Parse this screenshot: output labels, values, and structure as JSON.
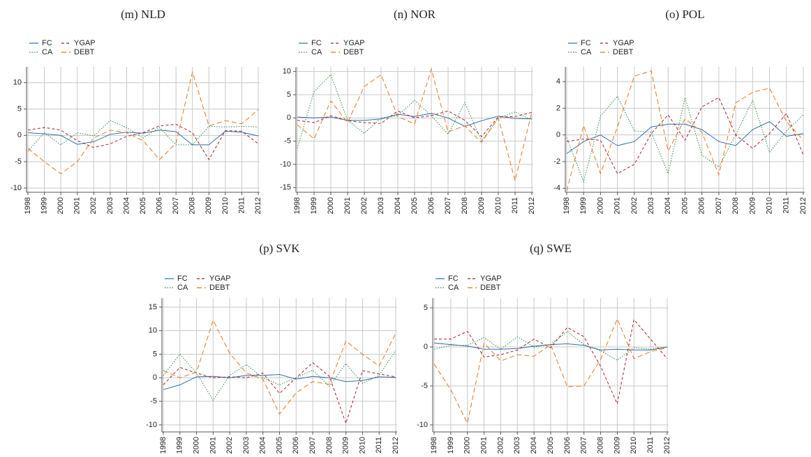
{
  "chart_data": [
    {
      "type": "line",
      "title": "(m) NLD",
      "categories": [
        "1998",
        "1999",
        "2000",
        "2001",
        "2002",
        "2003",
        "2004",
        "2005",
        "2006",
        "2007",
        "2008",
        "2009",
        "2010",
        "2011",
        "2012"
      ],
      "ylim": [
        -10.8,
        13
      ],
      "yticks": [
        -10,
        -5,
        0,
        5,
        10
      ],
      "grid": true,
      "series": [
        {
          "name": "FC",
          "color": "#2f6eaa",
          "dash": "solid",
          "values": [
            0.5,
            0.3,
            0,
            -1.7,
            -1.2,
            0.2,
            0.6,
            0.4,
            1.0,
            0.7,
            -1.8,
            -1.8,
            0.8,
            0.6,
            -0.1
          ]
        },
        {
          "name": "YGAP",
          "color": "#a8212b",
          "dash": "dashed",
          "values": [
            1.0,
            1.5,
            1.0,
            -1.0,
            -2.3,
            -1.6,
            -0.2,
            0.5,
            1.8,
            2.1,
            0.5,
            -4.6,
            0.9,
            0.8,
            -1.6
          ]
        },
        {
          "name": "CA",
          "color": "#2b8a3e",
          "dash": "dotted",
          "values": [
            -3,
            0.5,
            -1.8,
            0.5,
            -0.1,
            2.8,
            1.5,
            -0.5,
            1.5,
            -1.8,
            -1.8,
            1.7,
            1.6,
            1.7,
            1.6
          ]
        },
        {
          "name": "DEBT",
          "color": "#e8781e",
          "dash": "longdash",
          "values": [
            -2.5,
            -5,
            -7.3,
            -5,
            -0.5,
            1.0,
            0.5,
            -1.0,
            -4.6,
            -1.5,
            12,
            1.8,
            2.8,
            2.2,
            4.9
          ]
        }
      ]
    },
    {
      "type": "line",
      "title": "(n) NOR",
      "categories": [
        "1998",
        "1999",
        "2000",
        "2001",
        "2002",
        "2003",
        "2004",
        "2005",
        "2006",
        "2007",
        "2008",
        "2009",
        "2010",
        "2011",
        "2012"
      ],
      "ylim": [
        -16,
        11
      ],
      "yticks": [
        -15,
        -10,
        -5,
        0,
        5,
        10
      ],
      "grid": true,
      "series": [
        {
          "name": "FC",
          "color": "#2f6eaa",
          "dash": "solid",
          "values": [
            0.2,
            0,
            0.2,
            -0.5,
            -0.5,
            -0.2,
            0.8,
            0.3,
            1.0,
            0.0,
            -1.8,
            -0.6,
            0.4,
            -0.1,
            -0.2
          ]
        },
        {
          "name": "YGAP",
          "color": "#a8212b",
          "dash": "dashed",
          "values": [
            -0.5,
            -1,
            0.5,
            -0.6,
            -1,
            -1.2,
            1.5,
            0,
            0.5,
            1.5,
            -0.5,
            -4,
            0.2,
            0.3,
            1.2
          ]
        },
        {
          "name": "CA",
          "color": "#2b8a3e",
          "dash": "dotted",
          "values": [
            -6.5,
            5.7,
            9.3,
            -0.5,
            -3.3,
            0,
            0.5,
            3.8,
            0.5,
            -3.5,
            3.3,
            -5,
            0,
            1.3,
            -0.4
          ]
        },
        {
          "name": "DEBT",
          "color": "#e8781e",
          "dash": "longdash",
          "values": [
            -1.5,
            -4.5,
            3.7,
            -1,
            6.8,
            9.3,
            0.3,
            -1.3,
            10.5,
            -3,
            -1.7,
            -5.3,
            0,
            -13.5,
            1.3
          ]
        }
      ]
    },
    {
      "type": "line",
      "title": "(o) POL",
      "categories": [
        "1998",
        "1999",
        "2000",
        "2001",
        "2002",
        "2003",
        "2004",
        "2005",
        "2006",
        "2007",
        "2008",
        "2009",
        "2010",
        "2011",
        "2012"
      ],
      "ylim": [
        -4.3,
        5.1
      ],
      "yticks": [
        -4,
        -2,
        0,
        2,
        4
      ],
      "grid": true,
      "series": [
        {
          "name": "FC",
          "color": "#2f6eaa",
          "dash": "solid",
          "values": [
            -1.4,
            -0.5,
            0,
            -0.8,
            -0.5,
            0.6,
            0.8,
            0.8,
            0.4,
            -0.5,
            -0.8,
            0.4,
            1.0,
            -0.1,
            0.1
          ]
        },
        {
          "name": "YGAP",
          "color": "#a8212b",
          "dash": "dashed",
          "values": [
            -0.5,
            -0.3,
            -0.4,
            -2.9,
            -2.2,
            0.1,
            1.5,
            -0.4,
            2.1,
            2.8,
            0,
            -1.0,
            0.1,
            1.6,
            -1.5
          ]
        },
        {
          "name": "CA",
          "color": "#2b8a3e",
          "dash": "dotted",
          "values": [
            -0.2,
            -3.5,
            1.4,
            2.9,
            0.3,
            0.2,
            -2.9,
            2.8,
            -1.5,
            -2.4,
            0,
            2.6,
            -1.3,
            0.3,
            1.5
          ]
        },
        {
          "name": "DEBT",
          "color": "#e8781e",
          "dash": "longdash",
          "values": [
            -4.2,
            0.7,
            -2.9,
            0.6,
            4.4,
            4.8,
            -1.2,
            1.2,
            0.2,
            -3,
            2.4,
            3.2,
            3.5,
            1.0,
            -0.4
          ]
        }
      ]
    },
    {
      "type": "line",
      "title": "(p) SVK",
      "categories": [
        "1998",
        "1999",
        "2000",
        "2001",
        "2002",
        "2003",
        "2004",
        "2005",
        "2006",
        "2007",
        "2008",
        "2009",
        "2010",
        "2011",
        "2012"
      ],
      "ylim": [
        -11.5,
        16.9
      ],
      "yticks": [
        -10,
        -5,
        0,
        5,
        10,
        15
      ],
      "grid": true,
      "series": [
        {
          "name": "FC",
          "color": "#2f6eaa",
          "dash": "solid",
          "values": [
            -2.5,
            -1.5,
            0.2,
            0.3,
            0,
            0.5,
            0.5,
            0.7,
            -0.3,
            0.3,
            0.0,
            -0.8,
            -0.6,
            0.2,
            0.1
          ]
        },
        {
          "name": "YGAP",
          "color": "#a8212b",
          "dash": "dashed",
          "values": [
            -1.5,
            2.2,
            1.0,
            0,
            0.2,
            0,
            1.0,
            -3.3,
            0,
            3.2,
            0.3,
            -9.7,
            1.5,
            0.8,
            0.2
          ]
        },
        {
          "name": "CA",
          "color": "#2b8a3e",
          "dash": "dotted",
          "values": [
            0.5,
            5,
            1.0,
            -4.8,
            0.5,
            2.8,
            0,
            -1.5,
            0,
            1.6,
            -1.8,
            3.0,
            -1.2,
            0.5,
            5.8
          ]
        },
        {
          "name": "DEBT",
          "color": "#e8781e",
          "dash": "longdash",
          "values": [
            1.5,
            0,
            1.2,
            12.2,
            5.2,
            1.0,
            -0.3,
            -7.7,
            -3.2,
            -0.8,
            -1.4,
            7.8,
            5,
            2.5,
            9.4
          ]
        }
      ]
    },
    {
      "type": "line",
      "title": "(q) SWE",
      "categories": [
        "1998",
        "1999",
        "2000",
        "2001",
        "2002",
        "2003",
        "2004",
        "2005",
        "2006",
        "2007",
        "2008",
        "2009",
        "2010",
        "2011",
        "2012"
      ],
      "ylim": [
        -10.9,
        6.25
      ],
      "yticks": [
        -10,
        -5,
        0,
        5
      ],
      "grid": true,
      "series": [
        {
          "name": "FC",
          "color": "#2f6eaa",
          "dash": "solid",
          "values": [
            0.5,
            0.3,
            0.1,
            -0.3,
            -0.3,
            -0.2,
            0.1,
            0.3,
            0.4,
            0.2,
            -0.4,
            -0.3,
            -0.4,
            -0.4,
            0
          ]
        },
        {
          "name": "YGAP",
          "color": "#a8212b",
          "dash": "dashed",
          "values": [
            1,
            1,
            2.0,
            -1.3,
            -1.0,
            -0.4,
            1.0,
            -0.1,
            2.5,
            1.3,
            -2.5,
            -7.3,
            3.5,
            1.0,
            -1.5
          ]
        },
        {
          "name": "CA",
          "color": "#2b8a3e",
          "dash": "dotted",
          "values": [
            -0.3,
            0.2,
            0.2,
            1.2,
            -0.3,
            1.3,
            0,
            0.3,
            2.0,
            0.3,
            -0.5,
            -1.7,
            -0.1,
            -0.3,
            0
          ]
        },
        {
          "name": "DEBT",
          "color": "#e8781e",
          "dash": "longdash",
          "values": [
            -2.2,
            -5.5,
            -9.8,
            0.5,
            -1.8,
            -1,
            -1.2,
            0.3,
            -5.1,
            -5,
            -1.6,
            3.6,
            -1.5,
            -0.6,
            -0.1
          ]
        }
      ]
    }
  ]
}
